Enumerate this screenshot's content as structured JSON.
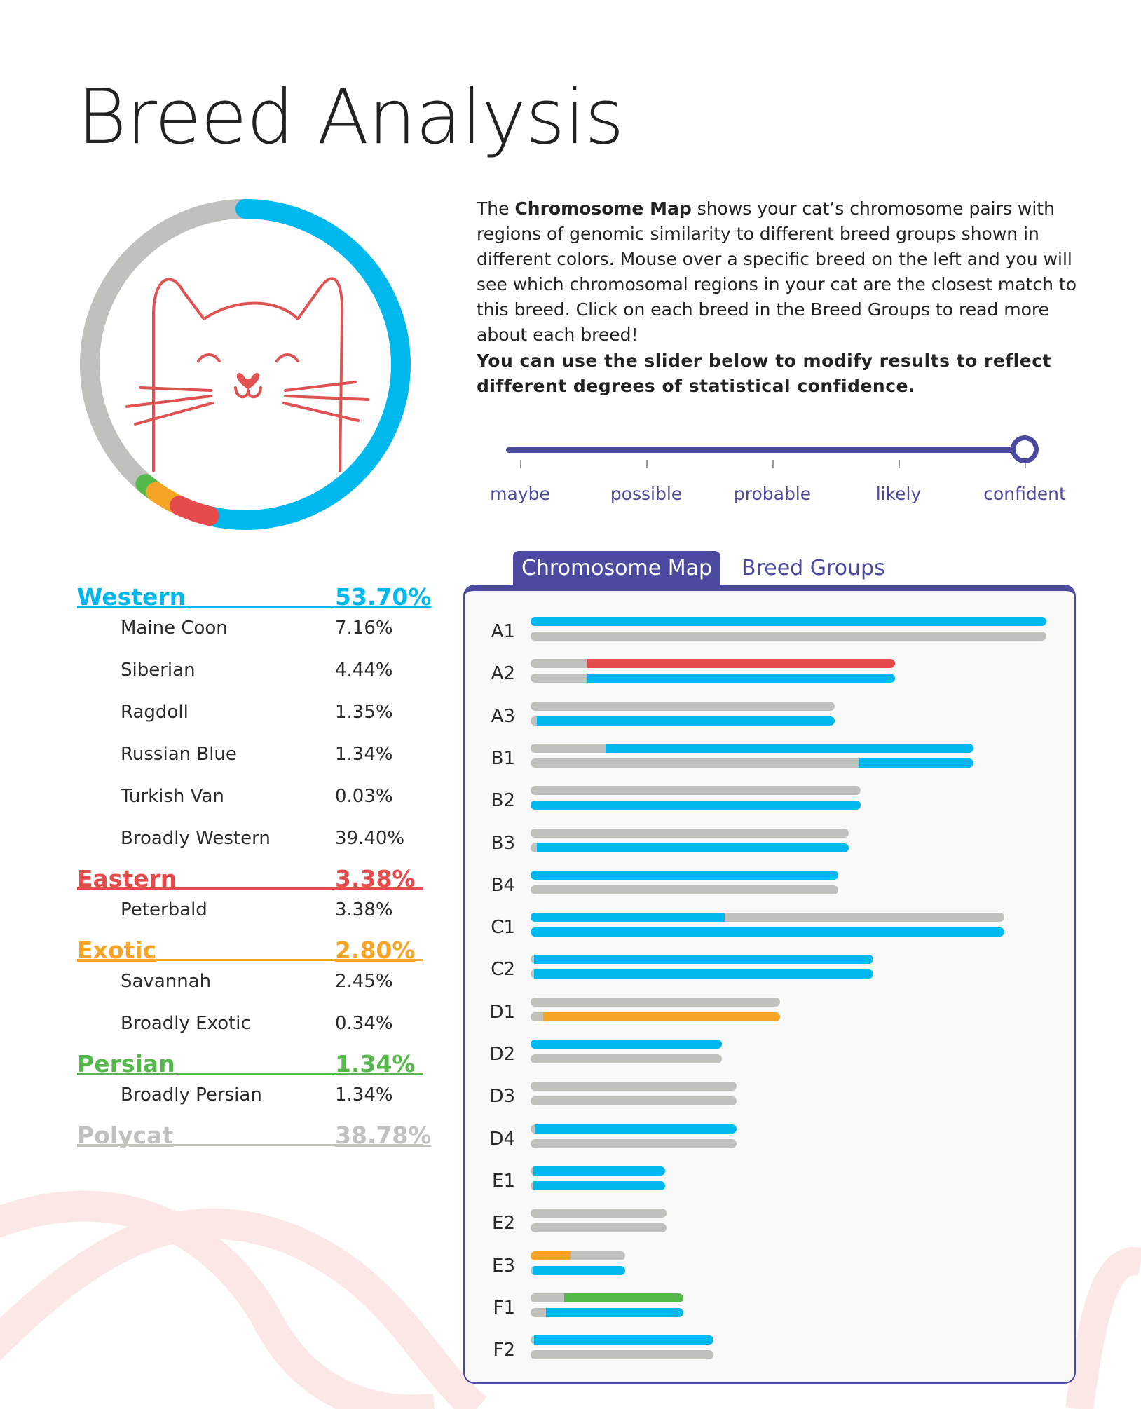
{
  "title": "Breed Analysis",
  "colors": {
    "western": "#00b8ee",
    "eastern": "#e54b4b",
    "exotic": "#f5a425",
    "persian": "#55b84a",
    "polycat": "#c0c0bc",
    "accent": "#4b4aa0",
    "cat_outline": "#e05252"
  },
  "donut": {
    "icon": "cat-face-icon",
    "segments": [
      {
        "group": "Western",
        "percent": 53.7
      },
      {
        "group": "Eastern",
        "percent": 3.38
      },
      {
        "group": "Exotic",
        "percent": 2.8
      },
      {
        "group": "Persian",
        "percent": 1.34
      },
      {
        "group": "Polycat",
        "percent": 38.78
      }
    ]
  },
  "description": {
    "part1": "The ",
    "bold": "Chromosome Map",
    "part2": " shows your cat’s chromosome pairs with regions of genomic similarity to different breed groups shown in different colors. Mouse over a specific breed on the left and you will see which chromosomal regions in your cat are the closest match to this breed. Click on each breed in the Breed Groups to read more about each breed!"
  },
  "slider_note": "You can use the slider below to modify results to reflect different degrees of statistical confidence.",
  "slider": {
    "labels": [
      "maybe",
      "possible",
      "probable",
      "likely",
      "confident"
    ],
    "selected_index": 4
  },
  "breed_groups": [
    {
      "name": "Western",
      "pct": "53.70%",
      "key": "western",
      "breeds": [
        {
          "name": "Maine Coon",
          "pct": "7.16%"
        },
        {
          "name": "Siberian",
          "pct": "4.44%"
        },
        {
          "name": "Ragdoll",
          "pct": "1.35%"
        },
        {
          "name": "Russian Blue",
          "pct": "1.34%"
        },
        {
          "name": "Turkish Van",
          "pct": "0.03%"
        },
        {
          "name": "Broadly Western",
          "pct": "39.40%"
        }
      ]
    },
    {
      "name": "Eastern",
      "pct": "3.38%",
      "key": "eastern",
      "breeds": [
        {
          "name": "Peterbald",
          "pct": "3.38%"
        }
      ]
    },
    {
      "name": "Exotic",
      "pct": "2.80%",
      "key": "exotic",
      "breeds": [
        {
          "name": "Savannah",
          "pct": "2.45%"
        },
        {
          "name": "Broadly Exotic",
          "pct": "0.34%"
        }
      ]
    },
    {
      "name": "Persian",
      "pct": "1.34%",
      "key": "persian",
      "breeds": [
        {
          "name": "Broadly Persian",
          "pct": "1.34%"
        }
      ]
    },
    {
      "name": "Polycat",
      "pct": "38.78%",
      "key": "polycat",
      "breeds": []
    }
  ],
  "tabs": {
    "active": "Chromosome Map",
    "inactive": "Breed Groups"
  },
  "chromosome_scale_max": 1,
  "chromosomes": [
    {
      "label": "A1",
      "length": 1.0,
      "strands": [
        [
          {
            "from": 0,
            "to": 1,
            "c": "western"
          }
        ],
        []
      ]
    },
    {
      "label": "A2",
      "length": 0.707,
      "strands": [
        [
          {
            "from": 0.156,
            "to": 1,
            "c": "eastern"
          }
        ],
        [
          {
            "from": 0.156,
            "to": 1,
            "c": "western"
          }
        ]
      ]
    },
    {
      "label": "A3",
      "length": 0.59,
      "strands": [
        [],
        [
          {
            "from": 0.02,
            "to": 1,
            "c": "western"
          }
        ]
      ]
    },
    {
      "label": "B1",
      "length": 0.859,
      "strands": [
        [
          {
            "from": 0.17,
            "to": 1,
            "c": "western"
          }
        ],
        [
          {
            "from": 0.742,
            "to": 1,
            "c": "western"
          }
        ]
      ]
    },
    {
      "label": "B2",
      "length": 0.64,
      "strands": [
        [],
        [
          {
            "from": 0,
            "to": 1,
            "c": "western"
          }
        ]
      ]
    },
    {
      "label": "B3",
      "length": 0.617,
      "strands": [
        [],
        [
          {
            "from": 0.02,
            "to": 1,
            "c": "western"
          }
        ]
      ]
    },
    {
      "label": "B4",
      "length": 0.596,
      "strands": [
        [
          {
            "from": 0,
            "to": 1,
            "c": "western"
          }
        ],
        []
      ]
    },
    {
      "label": "C1",
      "length": 0.918,
      "strands": [
        [
          {
            "from": 0,
            "to": 0.41,
            "c": "western"
          }
        ],
        [
          {
            "from": 0,
            "to": 1,
            "c": "western"
          }
        ]
      ]
    },
    {
      "label": "C2",
      "length": 0.664,
      "strands": [
        [
          {
            "from": 0.01,
            "to": 1,
            "c": "western"
          }
        ],
        [
          {
            "from": 0.01,
            "to": 1,
            "c": "western"
          }
        ]
      ]
    },
    {
      "label": "D1",
      "length": 0.484,
      "strands": [
        [],
        [
          {
            "from": 0.05,
            "to": 1,
            "c": "exotic"
          }
        ]
      ]
    },
    {
      "label": "D2",
      "length": 0.371,
      "strands": [
        [
          {
            "from": 0,
            "to": 1,
            "c": "western"
          }
        ],
        []
      ]
    },
    {
      "label": "D3",
      "length": 0.399,
      "strands": [
        [],
        []
      ]
    },
    {
      "label": "D4",
      "length": 0.399,
      "strands": [
        [
          {
            "from": 0.02,
            "to": 1,
            "c": "western"
          }
        ],
        []
      ]
    },
    {
      "label": "E1",
      "length": 0.261,
      "strands": [
        [
          {
            "from": 0.02,
            "to": 1,
            "c": "western"
          }
        ],
        [
          {
            "from": 0.02,
            "to": 1,
            "c": "western"
          }
        ]
      ]
    },
    {
      "label": "E2",
      "length": 0.264,
      "strands": [
        [],
        []
      ]
    },
    {
      "label": "E3",
      "length": 0.184,
      "strands": [
        [
          {
            "from": 0,
            "to": 0.42,
            "c": "exotic"
          }
        ],
        [
          {
            "from": 0.02,
            "to": 1,
            "c": "western"
          }
        ]
      ]
    },
    {
      "label": "F1",
      "length": 0.296,
      "strands": [
        [
          {
            "from": 0.22,
            "to": 1,
            "c": "persian"
          }
        ],
        [
          {
            "from": 0.1,
            "to": 1,
            "c": "western"
          }
        ]
      ]
    },
    {
      "label": "F2",
      "length": 0.354,
      "strands": [
        [
          {
            "from": 0.02,
            "to": 1,
            "c": "western"
          }
        ],
        []
      ]
    }
  ]
}
